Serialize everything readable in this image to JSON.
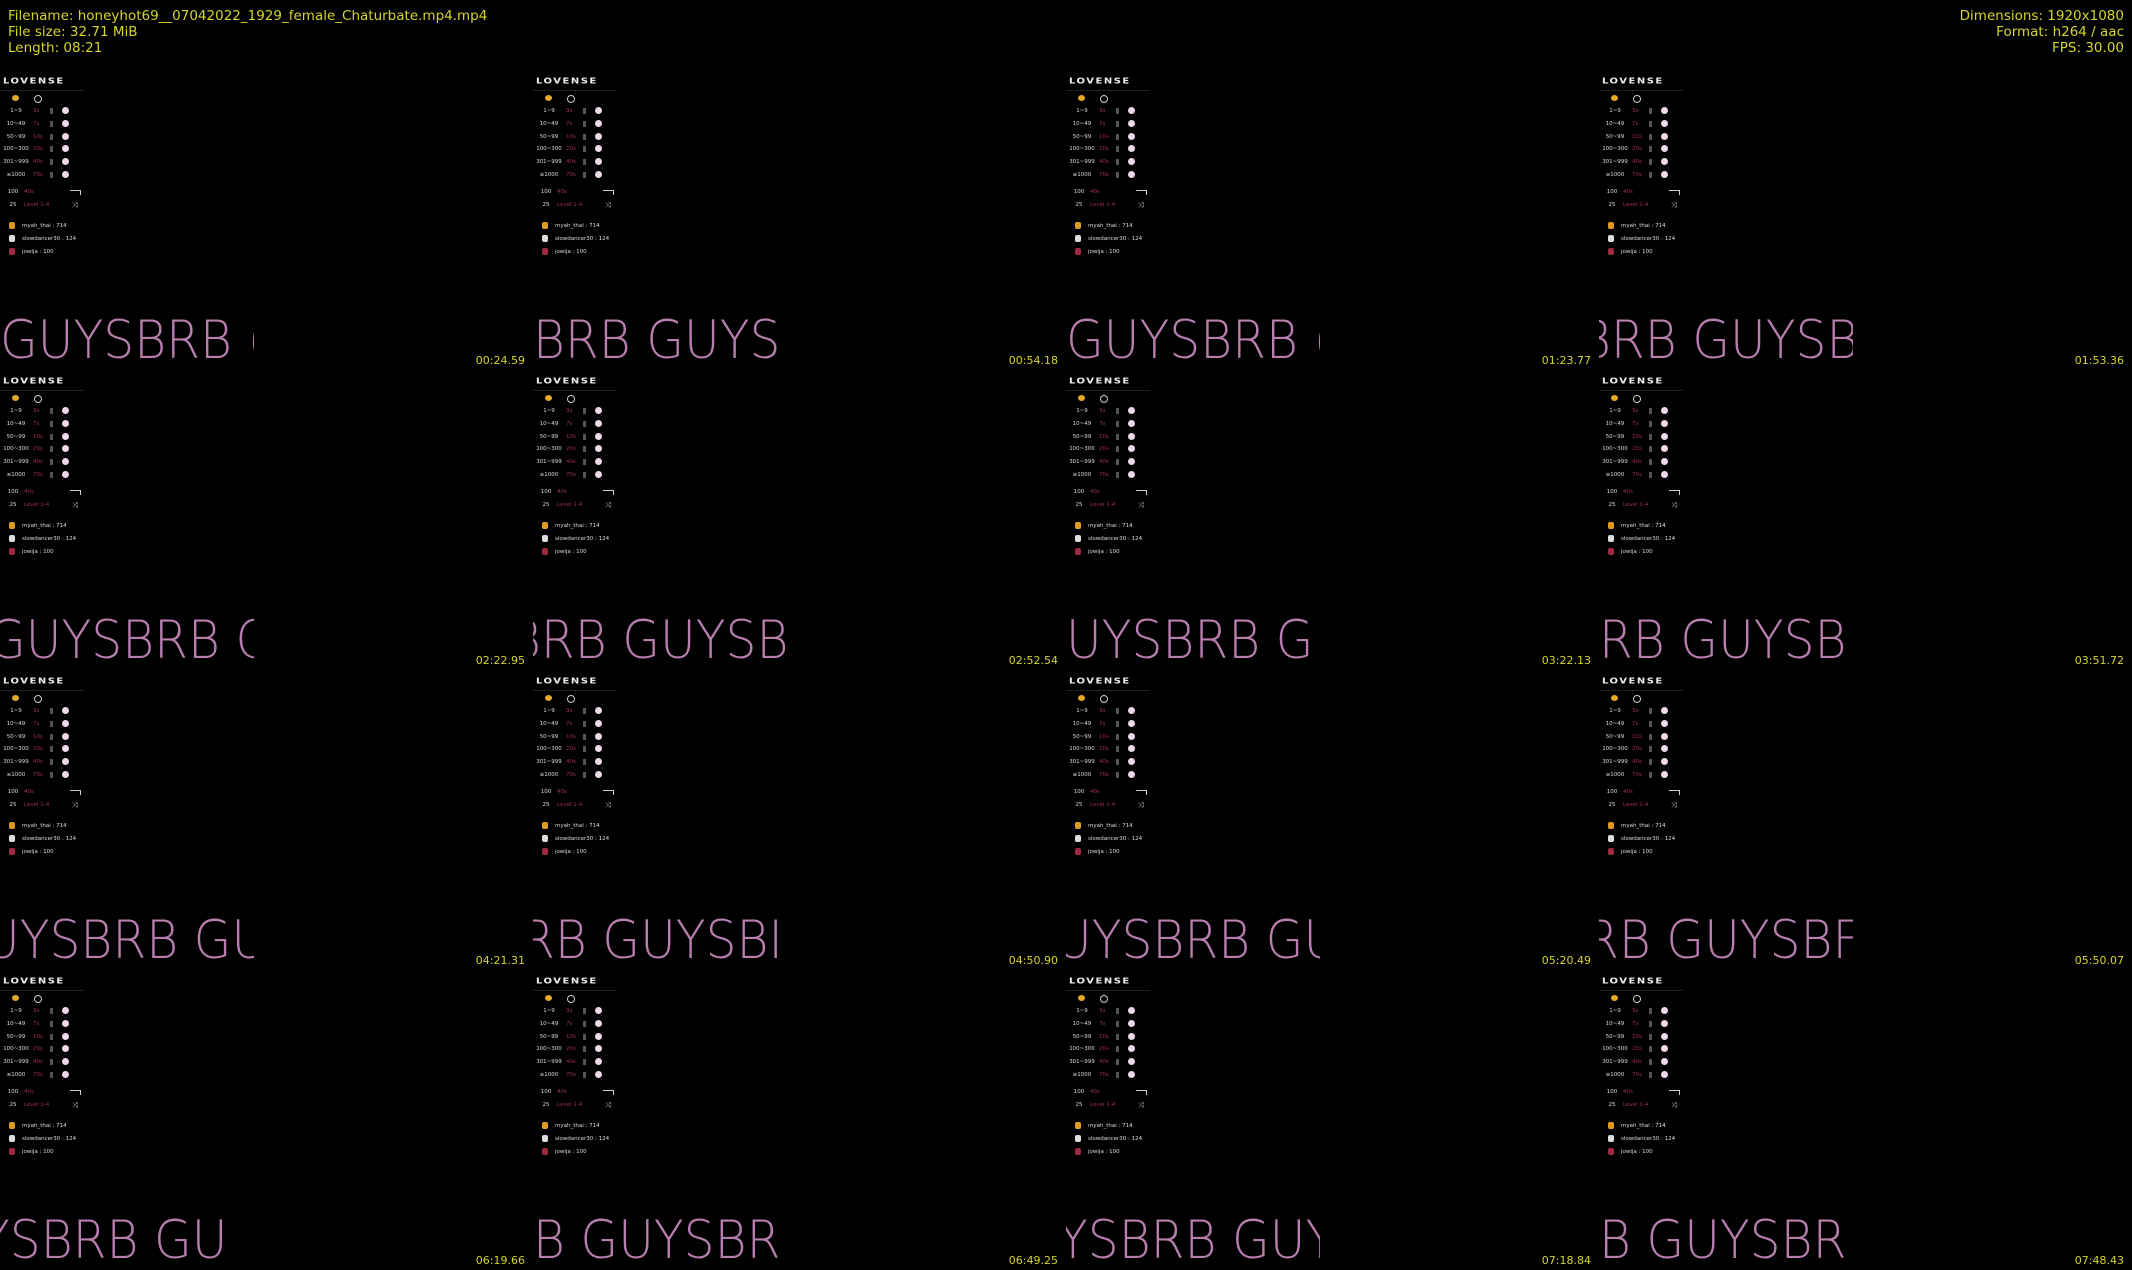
{
  "info_left": {
    "filename": "Filename: honeyhot69__07042022_1929_female_Chaturbate.mp4.mp4",
    "file_size": "File size: 32.71 MiB",
    "length": "Length: 08:21"
  },
  "info_right": {
    "dimensions": "Dimensions: 1920x1080",
    "format": "Format: h264 / aac",
    "fps": "FPS: 30.00"
  },
  "colors": {
    "meta_text": "#d4d42a",
    "overlay_text": "#b87eae",
    "accent_red": "#a0304f"
  },
  "panel": {
    "logo": "LOVENSE",
    "levels": [
      {
        "range": "1~9",
        "value": "3s"
      },
      {
        "range": "10~49",
        "value": "7s"
      },
      {
        "range": "50~99",
        "value": "10s"
      },
      {
        "range": "100~300",
        "value": "20s"
      },
      {
        "range": "301~999",
        "value": "40s"
      },
      {
        "range": "≥1000",
        "value": "70s"
      }
    ],
    "special": [
      {
        "amount": "100",
        "value": "40s"
      },
      {
        "amount": "25",
        "value": "Level 1-4"
      }
    ],
    "leaderboard": [
      {
        "entry": "myah_thai : 714",
        "medal": "#e09a20"
      },
      {
        "entry": "slowdancer30 : 124",
        "medal": "#dddddd"
      },
      {
        "entry": "jowija : 100",
        "medal": "#a02840"
      }
    ]
  },
  "thumbnails": [
    {
      "timestamp": "00:24.59",
      "overlay": "GUYSBRB (",
      "offset": 0
    },
    {
      "timestamp": "00:54.18",
      "overlay": "BRB GUYS",
      "offset": 0
    },
    {
      "timestamp": "01:23.77",
      "overlay": "GUYSBRB (",
      "offset": 0
    },
    {
      "timestamp": "01:53.36",
      "overlay": "BRB GUYSB",
      "offset": -20
    },
    {
      "timestamp": "02:22.95",
      "overlay": "GUYSBRB C",
      "offset": -12
    },
    {
      "timestamp": "02:52.54",
      "overlay": "BRB GUYSB",
      "offset": -24
    },
    {
      "timestamp": "03:22.13",
      "overlay": "UYSBRB G",
      "offset": 0
    },
    {
      "timestamp": "03:51.72",
      "overlay": "RB GUYSB",
      "offset": 0
    },
    {
      "timestamp": "04:21.31",
      "overlay": "UYSBRB GU",
      "offset": -16
    },
    {
      "timestamp": "04:50.90",
      "overlay": "RB GUYSBI",
      "offset": -12
    },
    {
      "timestamp": "05:20.49",
      "overlay": "UYSBRB GU",
      "offset": -10
    },
    {
      "timestamp": "05:50.07",
      "overlay": "RB GUYSBF",
      "offset": -14
    },
    {
      "timestamp": "06:19.66",
      "overlay": "YSBRB GU",
      "offset": -20
    },
    {
      "timestamp": "06:49.25",
      "overlay": "B GUYSBR",
      "offset": 0
    },
    {
      "timestamp": "07:18.84",
      "overlay": "YSBRB GUY",
      "offset": -8
    },
    {
      "timestamp": "07:48.43",
      "overlay": "B GUYSBR",
      "offset": 0
    }
  ]
}
